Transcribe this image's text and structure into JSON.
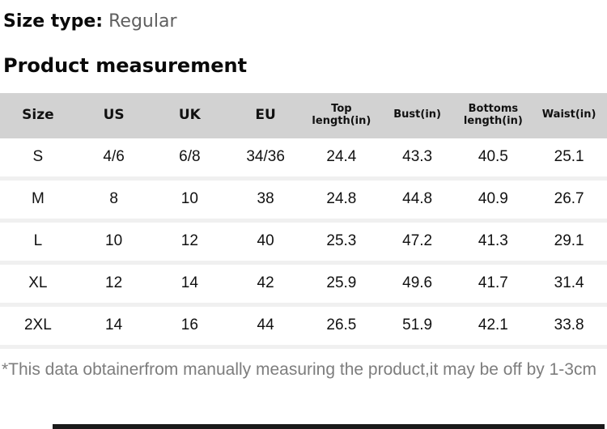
{
  "size_type": {
    "label": "Size type:",
    "value": "Regular"
  },
  "section_title": "Product measurement",
  "table": {
    "columns": [
      "Size",
      "US",
      "UK",
      "EU",
      "Top length(in)",
      "Bust(in)",
      "Bottoms length(in)",
      "Waist(in)"
    ],
    "rows": [
      [
        "S",
        "4/6",
        "6/8",
        "34/36",
        "24.4",
        "43.3",
        "40.5",
        "25.1"
      ],
      [
        "M",
        "8",
        "10",
        "38",
        "24.8",
        "44.8",
        "40.9",
        "26.7"
      ],
      [
        "L",
        "10",
        "12",
        "40",
        "25.3",
        "47.2",
        "41.3",
        "29.1"
      ],
      [
        "XL",
        "12",
        "14",
        "42",
        "25.9",
        "49.6",
        "41.7",
        "31.4"
      ],
      [
        "2XL",
        "14",
        "16",
        "44",
        "26.5",
        "51.9",
        "42.1",
        "33.8"
      ]
    ]
  },
  "note": "*This data obtainerfrom manually measuring the product,it may be off by 1-3cm",
  "colors": {
    "header_bg": "#d2d2d2",
    "row_separator": "#f0f0f0",
    "note_text": "#7d7d7d",
    "size_type_value": "#5f5f5f",
    "bottom_bar": "#1a1a1a"
  }
}
